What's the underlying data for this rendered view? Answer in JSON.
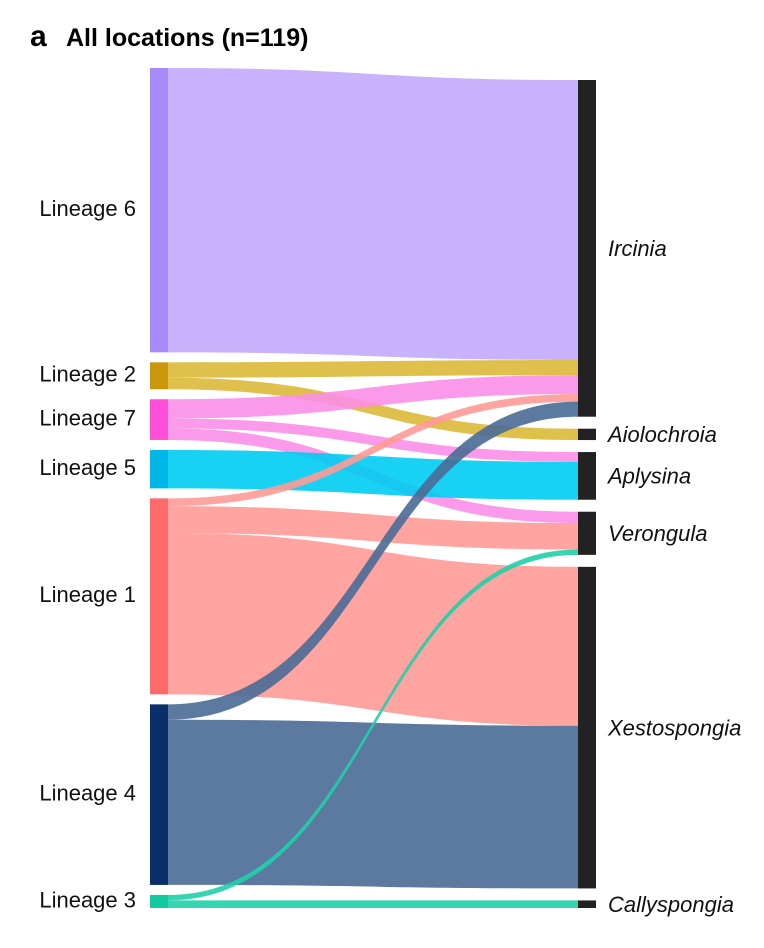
{
  "panel_letter": "a",
  "title": "All locations (n=119)",
  "chart_data": {
    "type": "sankey",
    "title": "All locations (n=119)",
    "sources": [
      {
        "name": "Lineage 6",
        "color": "#a78bfa"
      },
      {
        "name": "Lineage 2",
        "color": "#c9960c"
      },
      {
        "name": "Lineage 7",
        "color": "#ff4fd8"
      },
      {
        "name": "Lineage 5",
        "color": "#00b7e8"
      },
      {
        "name": "Lineage 1",
        "color": "#ff6b6b"
      },
      {
        "name": "Lineage 4",
        "color": "#0b2f6b"
      },
      {
        "name": "Lineage 3",
        "color": "#12c9a0"
      }
    ],
    "targets": [
      {
        "name": "Ircinia",
        "color": "#222222"
      },
      {
        "name": "Aiolochroia",
        "color": "#222222"
      },
      {
        "name": "Aplysina",
        "color": "#222222"
      },
      {
        "name": "Verongula",
        "color": "#222222"
      },
      {
        "name": "Xestospongia",
        "color": "#222222"
      },
      {
        "name": "Callyspongia",
        "color": "#222222"
      }
    ],
    "links": [
      {
        "source": "Lineage 6",
        "target": "Ircinia",
        "value": 37,
        "color": "#c2aafc"
      },
      {
        "source": "Lineage 2",
        "target": "Ircinia",
        "value": 2,
        "color": "#dbb93a"
      },
      {
        "source": "Lineage 2",
        "target": "Aiolochroia",
        "value": 1.5,
        "color": "#dbb93a"
      },
      {
        "source": "Lineage 7",
        "target": "Ircinia",
        "value": 2.5,
        "color": "#fb8ee8"
      },
      {
        "source": "Lineage 7",
        "target": "Aplysina",
        "value": 1.3,
        "color": "#fb8ee8"
      },
      {
        "source": "Lineage 7",
        "target": "Verongula",
        "value": 1.5,
        "color": "#fb8ee8"
      },
      {
        "source": "Lineage 5",
        "target": "Aplysina",
        "value": 5,
        "color": "#00cdf2"
      },
      {
        "source": "Lineage 1",
        "target": "Ircinia",
        "value": 1,
        "color": "#ff9a96"
      },
      {
        "source": "Lineage 1",
        "target": "Verongula",
        "value": 3.5,
        "color": "#ff9a96"
      },
      {
        "source": "Lineage 1",
        "target": "Xestospongia",
        "value": 21,
        "color": "#ff9a96"
      },
      {
        "source": "Lineage 4",
        "target": "Ircinia",
        "value": 2,
        "color": "#4a6b96"
      },
      {
        "source": "Lineage 4",
        "target": "Xestospongia",
        "value": 21.5,
        "color": "#4a6b96"
      },
      {
        "source": "Lineage 3",
        "target": "Verongula",
        "value": 0.7,
        "color": "#1fd0a8"
      },
      {
        "source": "Lineage 3",
        "target": "Callyspongia",
        "value": 1,
        "color": "#1fd0a8"
      }
    ]
  }
}
